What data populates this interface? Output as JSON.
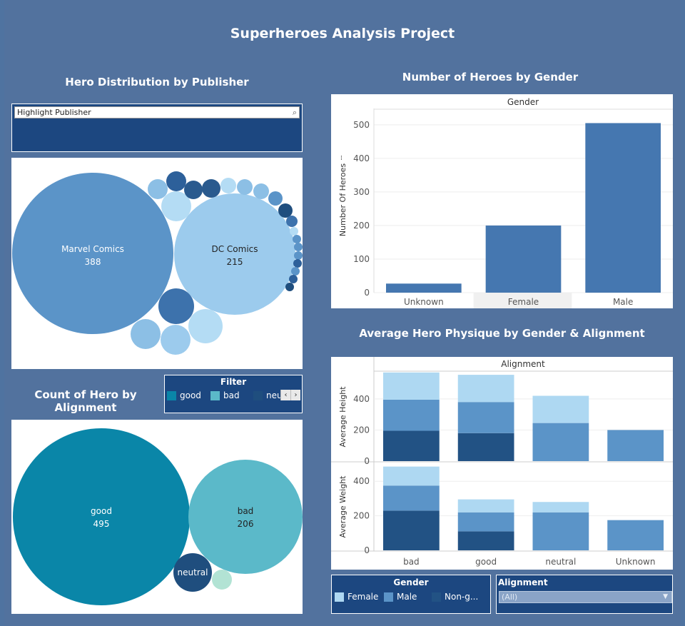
{
  "dashboard": {
    "title": "Superheroes Analysis Project"
  },
  "publisher_section": {
    "title": "Hero Distribution by Publisher",
    "highlight_placeholder": "Highlight Publisher",
    "search_icon": "search-icon"
  },
  "gender_section": {
    "title": "Number of Heroes by Gender"
  },
  "alignment_section": {
    "title": "Count of Hero by Alignment",
    "filter": {
      "title": "Filter",
      "items": [
        {
          "label": "good",
          "color": "#0a86a8"
        },
        {
          "label": "bad",
          "color": "#5bb9c9"
        },
        {
          "label": "neu",
          "color": "#1f4e7e"
        }
      ],
      "prev_icon": "chevron-left-icon",
      "next_icon": "chevron-right-icon"
    }
  },
  "physique_section": {
    "title": "Average Hero Physique by Gender & Alignment"
  },
  "gender_legend": {
    "title": "Gender",
    "items": [
      {
        "label": "Female",
        "color": "#aed8f2"
      },
      {
        "label": "Male",
        "color": "#5b94c8"
      },
      {
        "label": "Non-g...",
        "color": "#225284"
      }
    ]
  },
  "alignment_filter": {
    "title": "Alignment",
    "value": "(All)"
  },
  "chart_data": [
    {
      "type": "bubble",
      "name": "publisher",
      "series": [
        {
          "label": "Marvel Comics",
          "value": 388,
          "color": "#5b94c8"
        },
        {
          "label": "DC Comics",
          "value": 215,
          "color": "#9ccbed"
        }
      ]
    },
    {
      "type": "bar",
      "name": "gender",
      "header": "Gender",
      "ylabel": "Number Of Heroes",
      "categories": [
        "Unknown",
        "Female",
        "Male"
      ],
      "values": [
        27,
        200,
        505
      ],
      "yticks": [
        0,
        100,
        200,
        300,
        400,
        500
      ],
      "ylim": [
        0,
        540
      ],
      "color": "#4577b0"
    },
    {
      "type": "bubble",
      "name": "alignment",
      "series": [
        {
          "label": "good",
          "value": 495,
          "color": "#0a86a8"
        },
        {
          "label": "bad",
          "value": 206,
          "color": "#5bb9c9"
        },
        {
          "label": "neutral",
          "value": 24,
          "color": "#1f4e7e"
        },
        {
          "label": "",
          "value": 7,
          "color": "#b2e3d4"
        }
      ]
    },
    {
      "type": "bar",
      "stacked": true,
      "name": "physique",
      "header": "Alignment",
      "categories": [
        "bad",
        "good",
        "neutral",
        "Unknown"
      ],
      "panels": [
        {
          "ylabel": "Average Height",
          "yticks": [
            0,
            200,
            400
          ],
          "ymax": 560,
          "series": [
            {
              "name": "Non-g...",
              "color": "#225284",
              "values": [
                195,
                180,
                0,
                0
              ]
            },
            {
              "name": "Male",
              "color": "#5b94c8",
              "values": [
                200,
                200,
                245,
                200
              ]
            },
            {
              "name": "Female",
              "color": "#aed8f2",
              "values": [
                175,
                175,
                175,
                0
              ]
            }
          ]
        },
        {
          "ylabel": "Average Weight",
          "yticks": [
            0,
            200,
            400
          ],
          "ymax": 500,
          "series": [
            {
              "name": "Non-g...",
              "color": "#225284",
              "values": [
                230,
                110,
                0,
                0
              ]
            },
            {
              "name": "Male",
              "color": "#5b94c8",
              "values": [
                145,
                110,
                220,
                175
              ]
            },
            {
              "name": "Female",
              "color": "#aed8f2",
              "values": [
                110,
                75,
                60,
                0
              ]
            }
          ]
        }
      ]
    }
  ]
}
